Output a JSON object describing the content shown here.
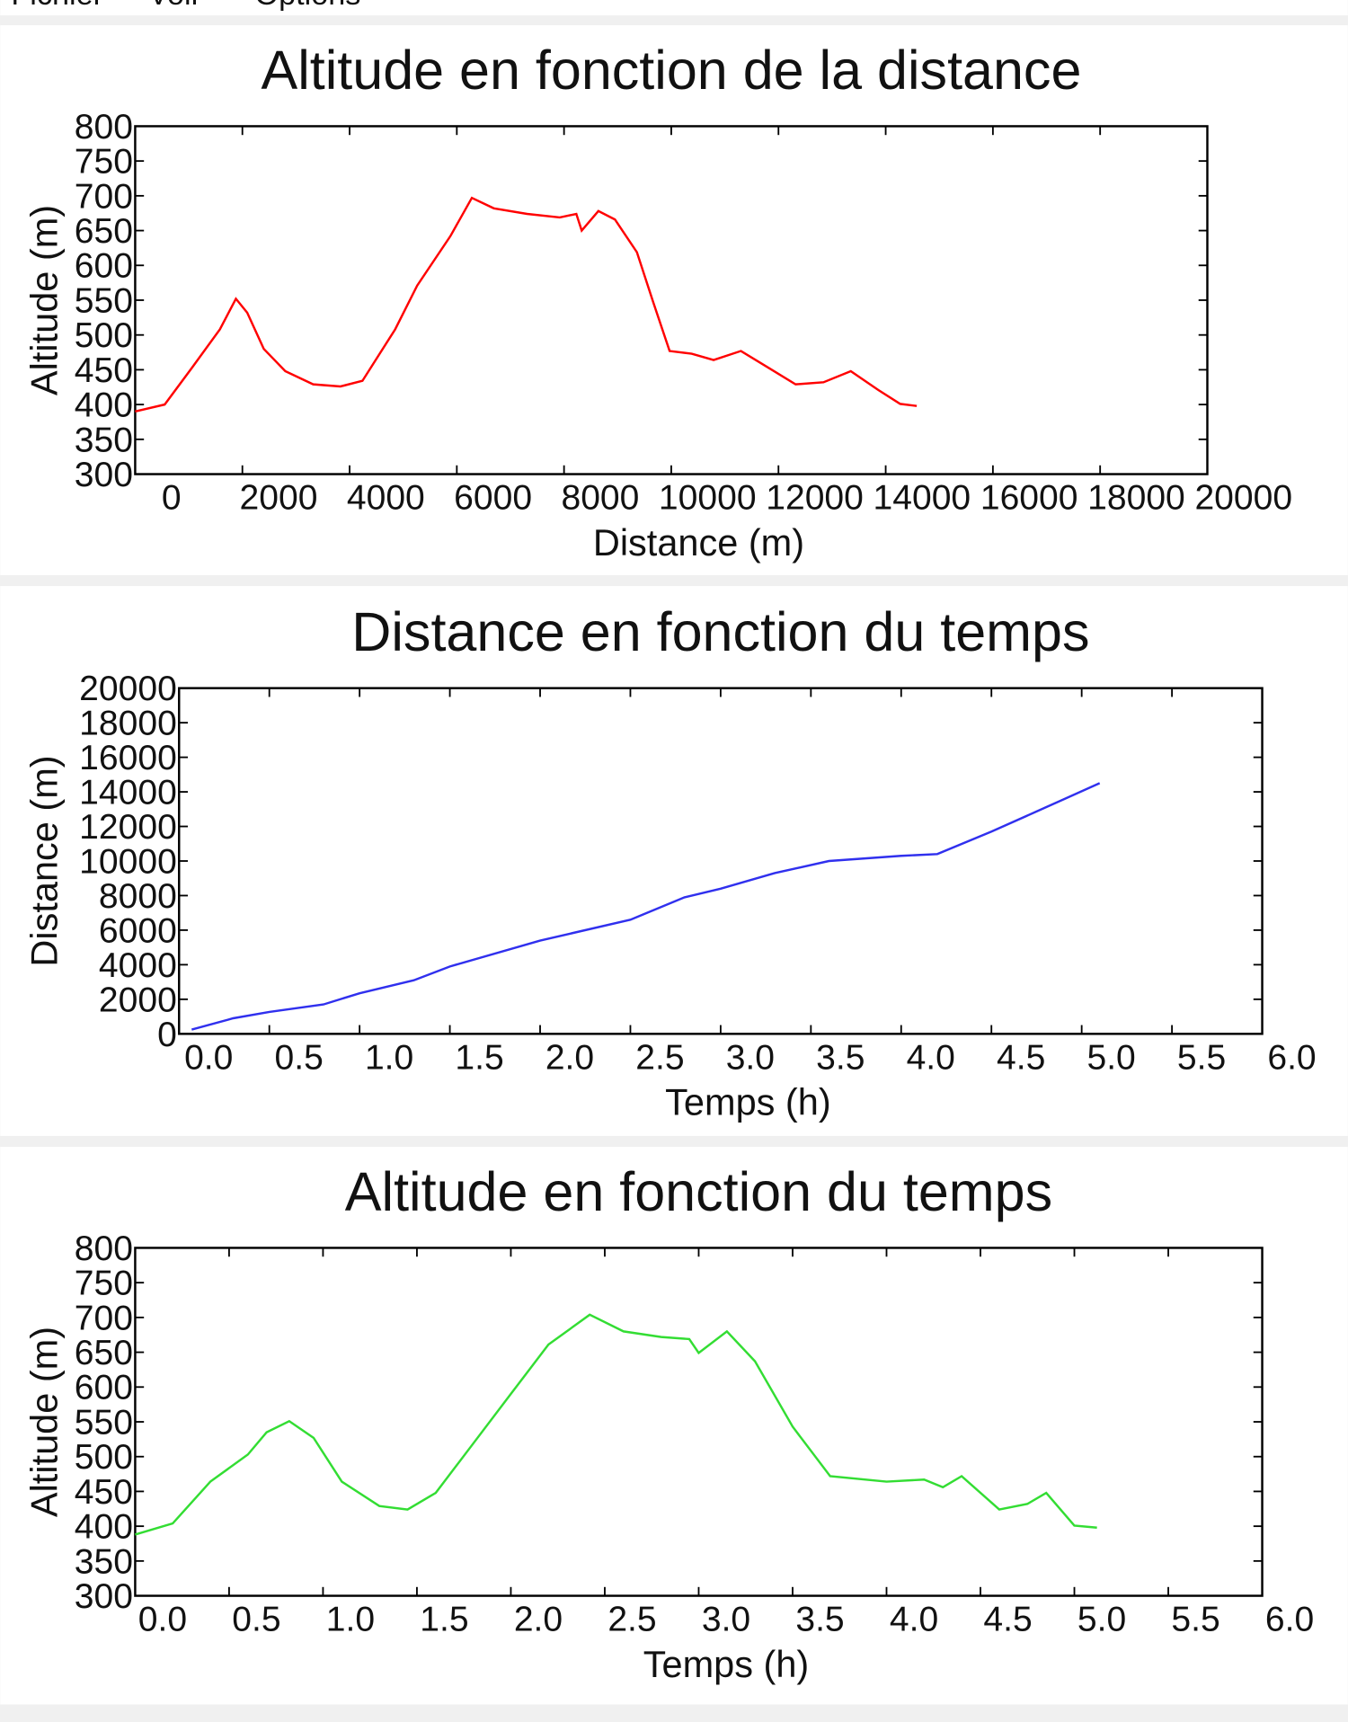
{
  "menu": [
    "Fichier",
    "Voir",
    "Options"
  ],
  "chart_data": [
    {
      "type": "line",
      "title": "Altitude en fonction de la distance",
      "xlabel": "Distance (m)",
      "ylabel": "Altitude (m)",
      "color": "#ff0000",
      "x": [
        0,
        550,
        1060,
        1580,
        1880,
        2090,
        2400,
        2800,
        3320,
        3830,
        4240,
        4850,
        5260,
        5880,
        6280,
        6690,
        7310,
        7920,
        8230,
        8330,
        8640,
        8950,
        9360,
        9660,
        9970,
        10380,
        10790,
        11300,
        11810,
        12320,
        12840,
        13350,
        13860,
        14270,
        14580
      ],
      "values": [
        390,
        400,
        453,
        508,
        552,
        532,
        480,
        448,
        429,
        426,
        434,
        508,
        571,
        642,
        697,
        682,
        674,
        669,
        674,
        650,
        678,
        666,
        619,
        548,
        477,
        473,
        464,
        477,
        453,
        429,
        432,
        448,
        421,
        401,
        398
      ],
      "xlim": [
        0,
        20000
      ],
      "xticks": [
        0,
        2000,
        4000,
        6000,
        8000,
        10000,
        12000,
        14000,
        16000,
        18000,
        20000
      ],
      "ylim": [
        300,
        800
      ],
      "yticks": [
        300,
        350,
        400,
        450,
        500,
        550,
        600,
        650,
        700,
        750,
        800
      ],
      "grid": false
    },
    {
      "type": "line",
      "title": "Distance en fonction du temps",
      "xlabel": "Temps (h)",
      "ylabel": "Distance (m)",
      "color": "#3030ee",
      "x": [
        0.07,
        0.3,
        0.5,
        0.8,
        1.0,
        1.3,
        1.5,
        2.0,
        2.5,
        2.8,
        3.0,
        3.3,
        3.6,
        4.0,
        4.2,
        4.5,
        4.8,
        5.1
      ],
      "values": [
        250,
        900,
        1270,
        1700,
        2350,
        3100,
        3900,
        5400,
        6600,
        7900,
        8400,
        9300,
        10000,
        10300,
        10400,
        11700,
        13100,
        14500
      ],
      "xlim": [
        0,
        6
      ],
      "xticks": [
        {
          "value": 0,
          "label": "0.0"
        },
        0.5,
        {
          "value": 1,
          "label": "1.0"
        },
        1.5,
        {
          "value": 2,
          "label": "2.0"
        },
        2.5,
        {
          "value": 3,
          "label": "3.0"
        },
        3.5,
        {
          "value": 4,
          "label": "4.0"
        },
        4.5,
        {
          "value": 5,
          "label": "5.0"
        },
        5.5,
        {
          "value": 6,
          "label": "6.0"
        }
      ],
      "ylim": [
        0,
        20000
      ],
      "yticks": [
        0,
        2000,
        4000,
        6000,
        8000,
        10000,
        12000,
        14000,
        16000,
        18000,
        20000
      ],
      "grid": false
    },
    {
      "type": "line",
      "title": "Altitude en fonction du temps",
      "xlabel": "Temps (h)",
      "ylabel": "Altitude (m)",
      "color": "#33dd33",
      "x": [
        0,
        0.2,
        0.4,
        0.6,
        0.7,
        0.82,
        0.95,
        1.1,
        1.3,
        1.45,
        1.6,
        1.8,
        2.0,
        2.2,
        2.42,
        2.6,
        2.8,
        2.95,
        3.0,
        3.15,
        3.3,
        3.5,
        3.7,
        4.0,
        4.2,
        4.3,
        4.4,
        4.6,
        4.75,
        4.85,
        5.0,
        5.12
      ],
      "values": [
        388,
        404,
        464,
        503,
        535,
        551,
        527,
        464,
        429,
        424,
        448,
        519,
        590,
        661,
        704,
        680,
        672,
        669,
        649,
        680,
        637,
        543,
        472,
        464,
        467,
        456,
        472,
        424,
        432,
        448,
        401,
        398
      ],
      "xlim": [
        0,
        6
      ],
      "xticks": [
        {
          "value": 0,
          "label": "0.0"
        },
        0.5,
        {
          "value": 1,
          "label": "1.0"
        },
        1.5,
        {
          "value": 2,
          "label": "2.0"
        },
        2.5,
        {
          "value": 3,
          "label": "3.0"
        },
        3.5,
        {
          "value": 4,
          "label": "4.0"
        },
        4.5,
        {
          "value": 5,
          "label": "5.0"
        },
        5.5,
        {
          "value": 6,
          "label": "6.0"
        }
      ],
      "ylim": [
        300,
        800
      ],
      "yticks": [
        300,
        350,
        400,
        450,
        500,
        550,
        600,
        650,
        700,
        750,
        800
      ],
      "grid": false
    }
  ]
}
